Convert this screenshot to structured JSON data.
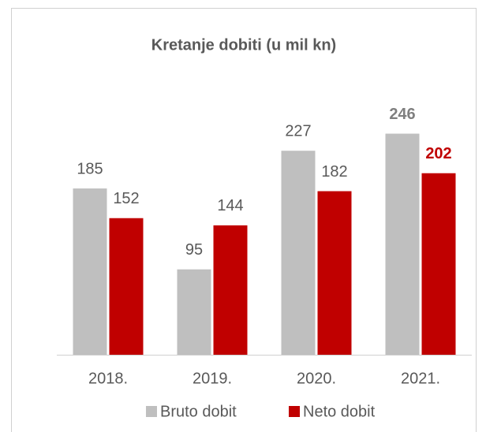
{
  "chart_data": {
    "type": "bar",
    "title": "Kretanje dobiti (u mil kn)",
    "categories": [
      "2018.",
      "2019.",
      "2020.",
      "2021."
    ],
    "series": [
      {
        "name": "Bruto dobit",
        "color": "#bfbfbf",
        "values": [
          185,
          95,
          227,
          246
        ]
      },
      {
        "name": "Neto dobit",
        "color": "#c00000",
        "values": [
          152,
          144,
          182,
          202
        ]
      }
    ]
  }
}
